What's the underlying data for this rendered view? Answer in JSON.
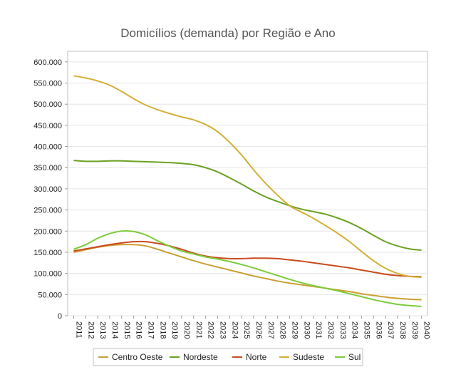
{
  "chart_data": {
    "type": "line",
    "title": "Domicílios (demanda) por Região e Ano",
    "xlabel": "",
    "ylabel": "",
    "ylim": [
      0,
      625000
    ],
    "y_ticks": [
      "0",
      "50.000",
      "100.000",
      "150.000",
      "200.000",
      "250.000",
      "300.000",
      "350.000",
      "400.000",
      "450.000",
      "500.000",
      "550.000",
      "600.000"
    ],
    "y_tick_values": [
      0,
      50000,
      100000,
      150000,
      200000,
      250000,
      300000,
      350000,
      400000,
      450000,
      500000,
      550000,
      600000
    ],
    "grid": true,
    "legend_position": "bottom",
    "x": [
      "2011",
      "2012",
      "2013",
      "2014",
      "2015",
      "2016",
      "2017",
      "2018",
      "2019",
      "2020",
      "2021",
      "2022",
      "2023",
      "2024",
      "2025",
      "2026",
      "2027",
      "2028",
      "2029",
      "2030",
      "2031",
      "2032",
      "2033",
      "2034",
      "2035",
      "2036",
      "2037",
      "2038",
      "2039",
      "2040"
    ],
    "series": [
      {
        "name": "Centro Oeste",
        "color": "#C9A030",
        "values": [
          150000,
          156000,
          162000,
          166000,
          168000,
          168000,
          165000,
          157000,
          148000,
          139000,
          130000,
          122000,
          115000,
          108000,
          101000,
          94000,
          88000,
          82000,
          77000,
          73000,
          69000,
          65000,
          61000,
          57000,
          52000,
          48000,
          44000,
          41000,
          39000,
          38000
        ]
      },
      {
        "name": "Nordeste",
        "color": "#6AA121",
        "values": [
          367000,
          365000,
          365000,
          366000,
          366000,
          365000,
          364000,
          363000,
          362000,
          360000,
          357000,
          350000,
          340000,
          326000,
          311000,
          295000,
          281000,
          270000,
          260000,
          252000,
          246000,
          240000,
          231000,
          220000,
          206000,
          190000,
          175000,
          165000,
          158000,
          155000
        ]
      },
      {
        "name": "Norte",
        "color": "#C84A1E",
        "values": [
          153000,
          158000,
          163000,
          168000,
          172000,
          175000,
          175000,
          171000,
          165000,
          157000,
          148000,
          141000,
          137000,
          135000,
          135000,
          136000,
          136000,
          135000,
          132000,
          129000,
          125000,
          121000,
          117000,
          113000,
          108000,
          103000,
          98000,
          95000,
          93000,
          92000
        ]
      },
      {
        "name": "Sudeste",
        "color": "#D4AF37",
        "values": [
          567000,
          562000,
          555000,
          545000,
          530000,
          513000,
          498000,
          487000,
          478000,
          470000,
          463000,
          452000,
          435000,
          410000,
          380000,
          345000,
          313000,
          285000,
          260000,
          245000,
          230000,
          213000,
          195000,
          175000,
          152000,
          130000,
          112000,
          100000,
          93000,
          91000
        ]
      },
      {
        "name": "Sul",
        "color": "#7DCB3A",
        "values": [
          157000,
          168000,
          183000,
          194000,
          200000,
          199000,
          191000,
          177000,
          164000,
          153000,
          146000,
          139000,
          134000,
          128000,
          121000,
          113000,
          104000,
          95000,
          86000,
          78000,
          71000,
          65000,
          59000,
          52000,
          45000,
          38000,
          32000,
          27000,
          24000,
          22000
        ]
      }
    ]
  }
}
